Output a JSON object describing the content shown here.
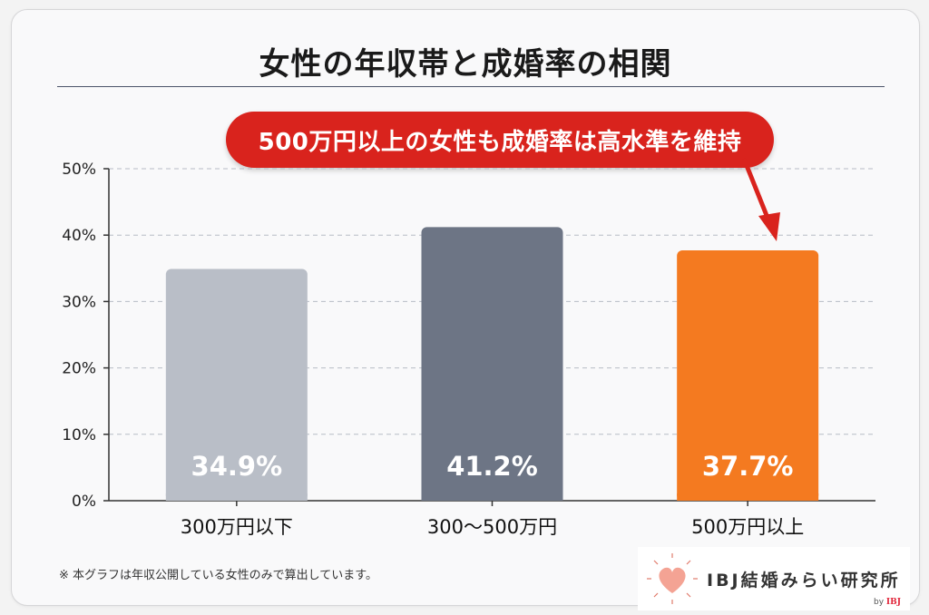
{
  "title": "女性の年収帯と成婚率の相関",
  "callout": "500万円以上の女性も成婚率は高水準を維持",
  "footnote": "※ 本グラフは年収公開している女性のみで算出しています。",
  "logo": {
    "text": "IBJ結婚みらい研究所",
    "by": "by",
    "by_brand": "IBJ",
    "icon": "heart-icon"
  },
  "chart_data": {
    "type": "bar",
    "title": "女性の年収帯と成婚率の相関",
    "categories": [
      "300万円以下",
      "300〜500万円",
      "500万円以上"
    ],
    "values": [
      34.9,
      41.2,
      37.7
    ],
    "value_labels": [
      "34.9%",
      "41.2%",
      "37.7%"
    ],
    "colors": [
      "#b9bec7",
      "#6d7585",
      "#f47a20"
    ],
    "ylim": [
      0,
      50
    ],
    "yticks": [
      0,
      10,
      20,
      30,
      40,
      50
    ],
    "ytick_labels": [
      "0%",
      "10%",
      "20%",
      "30%",
      "40%",
      "50%"
    ],
    "grid": true
  }
}
